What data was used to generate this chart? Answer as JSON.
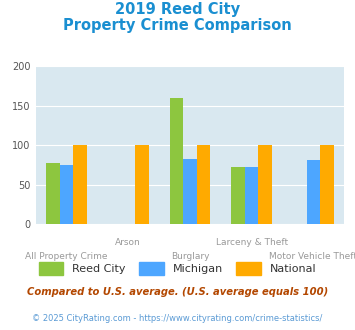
{
  "title_line1": "2019 Reed City",
  "title_line2": "Property Crime Comparison",
  "categories": [
    "All Property Crime",
    "Arson",
    "Burglary",
    "Larceny & Theft",
    "Motor Vehicle Theft"
  ],
  "cat_labels_row1": [
    "",
    "Arson",
    "",
    "Larceny & Theft",
    ""
  ],
  "cat_labels_row2": [
    "All Property Crime",
    "",
    "Burglary",
    "",
    "Motor Vehicle Theft"
  ],
  "series": {
    "Reed City": [
      78,
      0,
      160,
      72,
      0
    ],
    "Michigan": [
      75,
      0,
      83,
      73,
      81
    ],
    "National": [
      100,
      100,
      100,
      100,
      100
    ]
  },
  "colors": {
    "Reed City": "#8dc63f",
    "Michigan": "#4da6ff",
    "National": "#ffaa00"
  },
  "ylim": [
    0,
    200
  ],
  "yticks": [
    0,
    50,
    100,
    150,
    200
  ],
  "footnote1": "Compared to U.S. average. (U.S. average equals 100)",
  "footnote2": "© 2025 CityRating.com - https://www.cityrating.com/crime-statistics/",
  "title_color": "#1a8fd1",
  "footnote1_color": "#b34700",
  "footnote2_color": "#5b9bd5",
  "plot_bg": "#d9e8f0"
}
